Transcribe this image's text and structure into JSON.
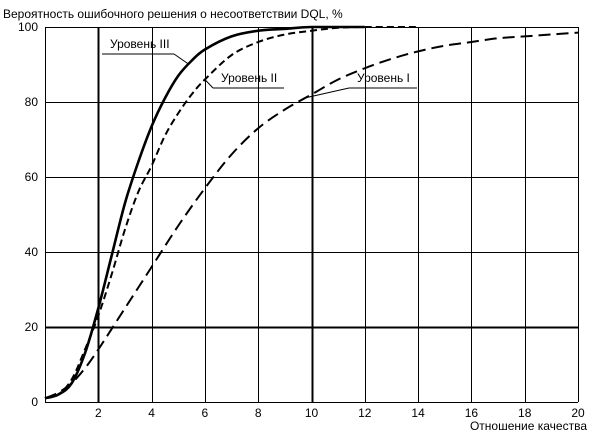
{
  "chart_data": {
    "type": "line",
    "title": "Вероятность ошибочного решения о несоответствии DQL, %",
    "xlabel": "Отношение качества",
    "ylabel": "",
    "xlim": [
      0,
      20
    ],
    "ylim": [
      0,
      100
    ],
    "x_ticks": [
      2,
      4,
      6,
      8,
      10,
      12,
      14,
      16,
      18,
      20
    ],
    "y_ticks": [
      0,
      20,
      40,
      60,
      80,
      100
    ],
    "x_major_gridlines": [
      2,
      10
    ],
    "y_major_gridlines": [
      20
    ],
    "grid": true,
    "legend": "inline labels with leader lines",
    "series": [
      {
        "name": "Уровень III",
        "line_style": "solid",
        "points": [
          [
            0,
            1
          ],
          [
            0.5,
            2
          ],
          [
            1,
            5
          ],
          [
            1.5,
            13
          ],
          [
            2,
            25
          ],
          [
            2.5,
            39
          ],
          [
            3,
            53
          ],
          [
            3.5,
            64
          ],
          [
            4,
            73.5
          ],
          [
            4.5,
            81
          ],
          [
            5,
            87
          ],
          [
            5.5,
            91
          ],
          [
            6,
            94
          ],
          [
            7,
            97.5
          ],
          [
            8,
            99
          ],
          [
            9,
            99.5
          ],
          [
            10,
            100
          ],
          [
            12,
            100
          ]
        ]
      },
      {
        "name": "Уровень II",
        "line_style": "dashed",
        "points": [
          [
            0,
            1
          ],
          [
            0.5,
            2
          ],
          [
            1,
            6
          ],
          [
            1.5,
            14
          ],
          [
            2,
            23
          ],
          [
            2.5,
            34
          ],
          [
            3,
            46
          ],
          [
            3.5,
            56
          ],
          [
            4,
            63
          ],
          [
            4.5,
            71
          ],
          [
            5,
            77
          ],
          [
            5.5,
            82
          ],
          [
            6,
            86
          ],
          [
            7,
            92.5
          ],
          [
            8,
            96
          ],
          [
            9,
            98
          ],
          [
            10,
            99
          ],
          [
            11,
            99.8
          ],
          [
            12,
            100
          ],
          [
            14,
            100
          ]
        ]
      },
      {
        "name": "Уровень I",
        "line_style": "long-dash",
        "points": [
          [
            0,
            1
          ],
          [
            0.5,
            2.5
          ],
          [
            1,
            5
          ],
          [
            1.5,
            9
          ],
          [
            2,
            14
          ],
          [
            3,
            25
          ],
          [
            4,
            36
          ],
          [
            5,
            47
          ],
          [
            6,
            57
          ],
          [
            7,
            66
          ],
          [
            8,
            73
          ],
          [
            9,
            78
          ],
          [
            10,
            82
          ],
          [
            11,
            86
          ],
          [
            12,
            89
          ],
          [
            13,
            91.5
          ],
          [
            14,
            93.5
          ],
          [
            15,
            95
          ],
          [
            16,
            96
          ],
          [
            17,
            97
          ],
          [
            18,
            97.5
          ],
          [
            19,
            98
          ],
          [
            20,
            98.5
          ]
        ]
      }
    ]
  }
}
